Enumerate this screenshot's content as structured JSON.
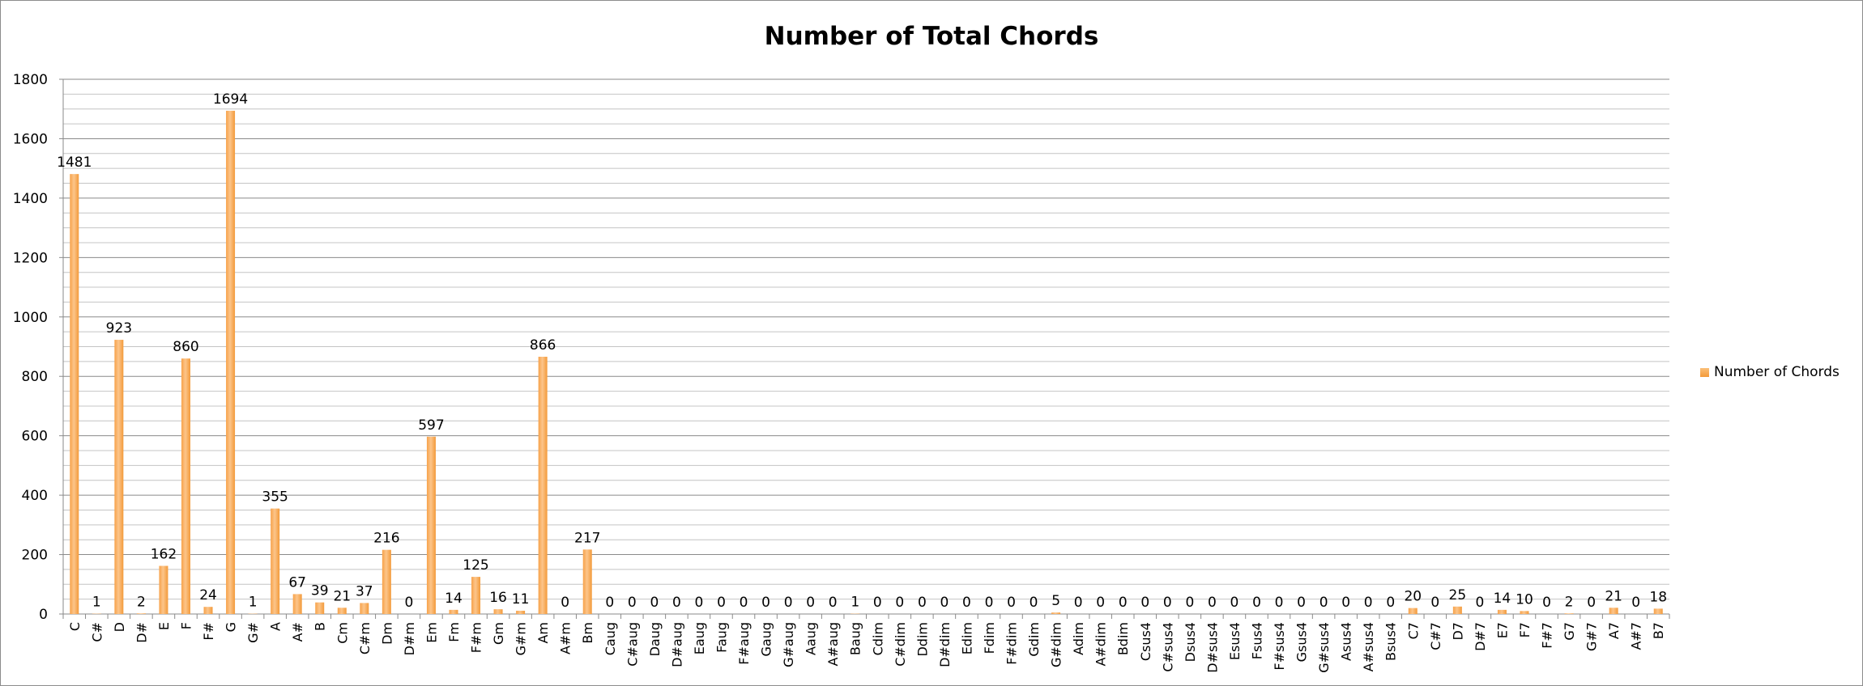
{
  "chart_data": {
    "type": "bar",
    "title": "Number of Total Chords",
    "xlabel": "",
    "ylabel": "",
    "ylim": [
      0,
      1800
    ],
    "yticks": [
      0,
      200,
      400,
      600,
      800,
      1000,
      1200,
      1400,
      1600,
      1800
    ],
    "grid": true,
    "legend_position": "right",
    "categories": [
      "C",
      "C#",
      "D",
      "D#",
      "E",
      "F",
      "F#",
      "G",
      "G#",
      "A",
      "A#",
      "B",
      "Cm",
      "C#m",
      "Dm",
      "D#m",
      "Em",
      "Fm",
      "F#m",
      "Gm",
      "G#m",
      "Am",
      "A#m",
      "Bm",
      "Caug",
      "C#aug",
      "Daug",
      "D#aug",
      "Eaug",
      "Faug",
      "F#aug",
      "Gaug",
      "G#aug",
      "Aaug",
      "A#aug",
      "Baug",
      "Cdim",
      "C#dim",
      "Ddim",
      "D#dim",
      "Edim",
      "Fdim",
      "F#dim",
      "Gdim",
      "G#dim",
      "Adim",
      "A#dim",
      "Bdim",
      "Csus4",
      "C#sus4",
      "Dsus4",
      "D#sus4",
      "Esus4",
      "Fsus4",
      "F#sus4",
      "Gsus4",
      "G#sus4",
      "Asus4",
      "A#sus4",
      "Bsus4",
      "C7",
      "C#7",
      "D7",
      "D#7",
      "E7",
      "F7",
      "F#7",
      "G7",
      "G#7",
      "A7",
      "A#7",
      "B7"
    ],
    "series": [
      {
        "name": "Number of Chords",
        "color": "#f39a3a",
        "values": [
          1481,
          1,
          923,
          2,
          162,
          860,
          24,
          1694,
          1,
          355,
          67,
          39,
          21,
          37,
          216,
          0,
          597,
          14,
          125,
          16,
          11,
          866,
          0,
          217,
          0,
          0,
          0,
          0,
          0,
          0,
          0,
          0,
          0,
          0,
          0,
          1,
          0,
          0,
          0,
          0,
          0,
          0,
          0,
          0,
          5,
          0,
          0,
          0,
          0,
          0,
          0,
          0,
          0,
          0,
          0,
          0,
          0,
          0,
          0,
          0,
          20,
          0,
          25,
          0,
          14,
          10,
          0,
          2,
          0,
          21,
          0,
          18
        ]
      }
    ]
  }
}
